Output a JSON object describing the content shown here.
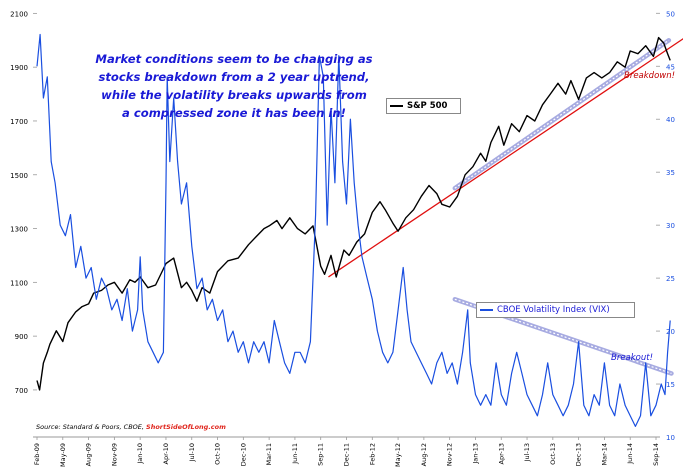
{
  "chart_data": {
    "type": "line",
    "title": "",
    "x_labels": [
      "Feb-09",
      "May-09",
      "Aug-09",
      "Nov-09",
      "Jan-10",
      "Apr-10",
      "Jul-10",
      "Oct-10",
      "Dec-10",
      "Mar-11",
      "Jun-11",
      "Sep-11",
      "Dec-11",
      "Feb-12",
      "May-12",
      "Aug-12",
      "Nov-12",
      "Jan-13",
      "Apr-13",
      "Jul-13",
      "Oct-13",
      "Dec-13",
      "Mar-14",
      "Jun-14",
      "Sep-14"
    ],
    "left_axis": {
      "ticks": [
        700,
        900,
        1100,
        1300,
        1500,
        1700,
        1900,
        2100
      ],
      "range": [
        525,
        2120
      ]
    },
    "right_axis": {
      "ticks": [
        10,
        15,
        20,
        25,
        30,
        35,
        40,
        45,
        50
      ],
      "range": [
        10,
        50.5
      ]
    },
    "series": [
      {
        "name": "S&P 500",
        "color": "#000000",
        "axis": "left",
        "points": [
          [
            0,
            735
          ],
          [
            0.1,
            700
          ],
          [
            0.25,
            800
          ],
          [
            0.4,
            840
          ],
          [
            0.5,
            870
          ],
          [
            0.75,
            920
          ],
          [
            1,
            880
          ],
          [
            1.2,
            950
          ],
          [
            1.5,
            990
          ],
          [
            1.75,
            1010
          ],
          [
            2,
            1020
          ],
          [
            2.2,
            1060
          ],
          [
            2.5,
            1070
          ],
          [
            2.75,
            1090
          ],
          [
            3,
            1100
          ],
          [
            3.3,
            1060
          ],
          [
            3.6,
            1110
          ],
          [
            3.8,
            1100
          ],
          [
            4,
            1120
          ],
          [
            4.3,
            1080
          ],
          [
            4.6,
            1090
          ],
          [
            5,
            1170
          ],
          [
            5.3,
            1190
          ],
          [
            5.6,
            1080
          ],
          [
            5.8,
            1100
          ],
          [
            6,
            1070
          ],
          [
            6.2,
            1030
          ],
          [
            6.4,
            1080
          ],
          [
            6.7,
            1060
          ],
          [
            7,
            1140
          ],
          [
            7.4,
            1180
          ],
          [
            7.8,
            1190
          ],
          [
            8.2,
            1240
          ],
          [
            8.5,
            1270
          ],
          [
            8.8,
            1300
          ],
          [
            9,
            1310
          ],
          [
            9.3,
            1330
          ],
          [
            9.5,
            1300
          ],
          [
            9.8,
            1340
          ],
          [
            10.1,
            1300
          ],
          [
            10.4,
            1280
          ],
          [
            10.7,
            1310
          ],
          [
            11,
            1160
          ],
          [
            11.15,
            1130
          ],
          [
            11.4,
            1200
          ],
          [
            11.6,
            1120
          ],
          [
            11.9,
            1220
          ],
          [
            12.1,
            1200
          ],
          [
            12.4,
            1250
          ],
          [
            12.7,
            1280
          ],
          [
            13,
            1360
          ],
          [
            13.3,
            1400
          ],
          [
            13.5,
            1370
          ],
          [
            13.8,
            1320
          ],
          [
            14,
            1290
          ],
          [
            14.3,
            1340
          ],
          [
            14.6,
            1370
          ],
          [
            14.9,
            1420
          ],
          [
            15.2,
            1460
          ],
          [
            15.5,
            1430
          ],
          [
            15.7,
            1390
          ],
          [
            16,
            1380
          ],
          [
            16.3,
            1420
          ],
          [
            16.6,
            1500
          ],
          [
            16.9,
            1530
          ],
          [
            17.2,
            1580
          ],
          [
            17.4,
            1550
          ],
          [
            17.6,
            1620
          ],
          [
            17.9,
            1680
          ],
          [
            18.1,
            1610
          ],
          [
            18.4,
            1690
          ],
          [
            18.7,
            1660
          ],
          [
            19,
            1720
          ],
          [
            19.3,
            1700
          ],
          [
            19.6,
            1760
          ],
          [
            19.9,
            1800
          ],
          [
            20.2,
            1840
          ],
          [
            20.5,
            1800
          ],
          [
            20.7,
            1850
          ],
          [
            21,
            1780
          ],
          [
            21.3,
            1860
          ],
          [
            21.6,
            1880
          ],
          [
            21.9,
            1860
          ],
          [
            22.2,
            1880
          ],
          [
            22.5,
            1920
          ],
          [
            22.8,
            1900
          ],
          [
            23,
            1960
          ],
          [
            23.3,
            1950
          ],
          [
            23.6,
            1980
          ],
          [
            23.9,
            1940
          ],
          [
            24.1,
            2010
          ],
          [
            24.3,
            1990
          ],
          [
            24.45,
            1950
          ],
          [
            24.55,
            1925
          ]
        ]
      },
      {
        "name": "CBOE Volatility Index (VIX)",
        "color": "#1a4fe0",
        "axis": "right",
        "points": [
          [
            0,
            45
          ],
          [
            0.12,
            48
          ],
          [
            0.25,
            42
          ],
          [
            0.4,
            44
          ],
          [
            0.55,
            36
          ],
          [
            0.7,
            34
          ],
          [
            0.9,
            30
          ],
          [
            1.1,
            29
          ],
          [
            1.3,
            31
          ],
          [
            1.5,
            26
          ],
          [
            1.7,
            28
          ],
          [
            1.9,
            25
          ],
          [
            2.1,
            26
          ],
          [
            2.3,
            23
          ],
          [
            2.5,
            25
          ],
          [
            2.7,
            24
          ],
          [
            2.9,
            22
          ],
          [
            3.1,
            23
          ],
          [
            3.3,
            21
          ],
          [
            3.5,
            24
          ],
          [
            3.7,
            20
          ],
          [
            3.9,
            22
          ],
          [
            4,
            27
          ],
          [
            4.1,
            22
          ],
          [
            4.3,
            19
          ],
          [
            4.5,
            18
          ],
          [
            4.7,
            17
          ],
          [
            4.9,
            18
          ],
          [
            5,
            34
          ],
          [
            5.05,
            44
          ],
          [
            5.15,
            36
          ],
          [
            5.3,
            42
          ],
          [
            5.45,
            36
          ],
          [
            5.6,
            32
          ],
          [
            5.8,
            34
          ],
          [
            6,
            28
          ],
          [
            6.2,
            24
          ],
          [
            6.4,
            25
          ],
          [
            6.6,
            22
          ],
          [
            6.8,
            23
          ],
          [
            7,
            21
          ],
          [
            7.2,
            22
          ],
          [
            7.4,
            19
          ],
          [
            7.6,
            20
          ],
          [
            7.8,
            18
          ],
          [
            8,
            19
          ],
          [
            8.2,
            17
          ],
          [
            8.4,
            19
          ],
          [
            8.6,
            18
          ],
          [
            8.8,
            19
          ],
          [
            9,
            17
          ],
          [
            9.2,
            21
          ],
          [
            9.4,
            19
          ],
          [
            9.6,
            17
          ],
          [
            9.8,
            16
          ],
          [
            10,
            18
          ],
          [
            10.2,
            18
          ],
          [
            10.4,
            17
          ],
          [
            10.6,
            19
          ],
          [
            10.8,
            31
          ],
          [
            10.95,
            46
          ],
          [
            11.1,
            44
          ],
          [
            11.25,
            30
          ],
          [
            11.4,
            41
          ],
          [
            11.55,
            34
          ],
          [
            11.7,
            46
          ],
          [
            11.85,
            36
          ],
          [
            12,
            32
          ],
          [
            12.15,
            40
          ],
          [
            12.3,
            34
          ],
          [
            12.45,
            30
          ],
          [
            12.6,
            27
          ],
          [
            12.8,
            25
          ],
          [
            13,
            23
          ],
          [
            13.2,
            20
          ],
          [
            13.4,
            18
          ],
          [
            13.6,
            17
          ],
          [
            13.8,
            18
          ],
          [
            14,
            22
          ],
          [
            14.2,
            26
          ],
          [
            14.35,
            22
          ],
          [
            14.5,
            19
          ],
          [
            14.7,
            18
          ],
          [
            14.9,
            17
          ],
          [
            15.1,
            16
          ],
          [
            15.3,
            15
          ],
          [
            15.5,
            17
          ],
          [
            15.7,
            18
          ],
          [
            15.9,
            16
          ],
          [
            16.1,
            17
          ],
          [
            16.3,
            15
          ],
          [
            16.5,
            18
          ],
          [
            16.7,
            22
          ],
          [
            16.8,
            17
          ],
          [
            17,
            14
          ],
          [
            17.2,
            13
          ],
          [
            17.4,
            14
          ],
          [
            17.6,
            13
          ],
          [
            17.8,
            17
          ],
          [
            18,
            14
          ],
          [
            18.2,
            13
          ],
          [
            18.4,
            16
          ],
          [
            18.6,
            18
          ],
          [
            18.8,
            16
          ],
          [
            19,
            14
          ],
          [
            19.2,
            13
          ],
          [
            19.4,
            12
          ],
          [
            19.6,
            14
          ],
          [
            19.8,
            17
          ],
          [
            20,
            14
          ],
          [
            20.2,
            13
          ],
          [
            20.4,
            12
          ],
          [
            20.6,
            13
          ],
          [
            20.8,
            15
          ],
          [
            21,
            19
          ],
          [
            21.2,
            13
          ],
          [
            21.4,
            12
          ],
          [
            21.6,
            14
          ],
          [
            21.8,
            13
          ],
          [
            22,
            17
          ],
          [
            22.2,
            13
          ],
          [
            22.4,
            12
          ],
          [
            22.6,
            15
          ],
          [
            22.8,
            13
          ],
          [
            23,
            12
          ],
          [
            23.2,
            11
          ],
          [
            23.4,
            12
          ],
          [
            23.6,
            17
          ],
          [
            23.8,
            12
          ],
          [
            24,
            13
          ],
          [
            24.2,
            15
          ],
          [
            24.35,
            14
          ],
          [
            24.45,
            18
          ],
          [
            24.55,
            21
          ]
        ]
      }
    ],
    "trendlines": [
      {
        "name": "S&P 500 uptrend",
        "axis": "left",
        "color": "#e01010",
        "from": [
          11.3,
          1120
        ],
        "to": [
          25.2,
          2015
        ],
        "style": "solid"
      },
      {
        "name": "S&P 500 channel",
        "axis": "left",
        "color": "#8a8fd8",
        "from": [
          16.2,
          1450
        ],
        "to": [
          24.5,
          2000
        ],
        "style": "dashed"
      },
      {
        "name": "VIX compressed zone",
        "axis": "right",
        "color": "#8a8fd8",
        "from": [
          16.2,
          23
        ],
        "to": [
          24.6,
          16
        ],
        "style": "dashed"
      }
    ],
    "legend": [
      {
        "label": "S&P 500",
        "color": "#000000"
      },
      {
        "label": "CBOE Volatility Index (VIX)",
        "color": "#1a4fe0"
      }
    ],
    "annotations": {
      "commentary": [
        "Market conditions seem to be changing as",
        "stocks breakdown from a 2 year uptrend,",
        "while the volatility breaks upwards from",
        "a compressed zone it has been in!"
      ],
      "breakdown": "Breakdown!",
      "breakout": "Breakout!"
    },
    "source": {
      "prefix": "Source: Standard & Poors, CBOE, ",
      "brand": "ShortSideOfLong.com"
    }
  }
}
